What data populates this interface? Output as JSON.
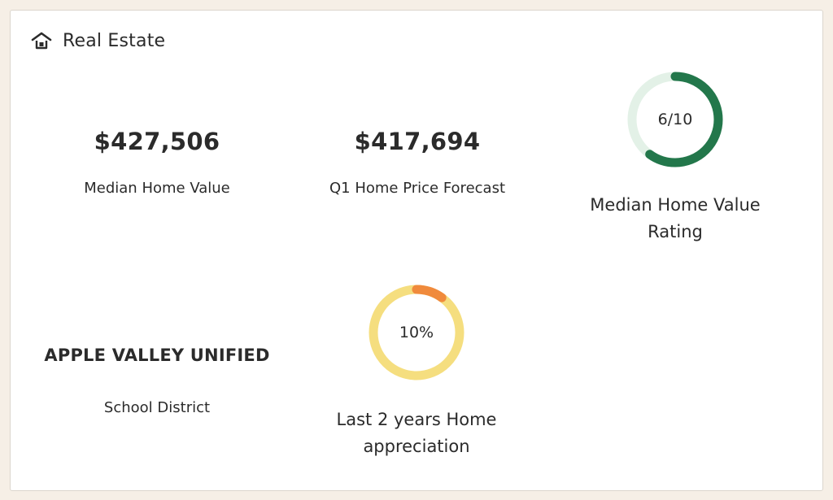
{
  "header": {
    "title": "Real Estate",
    "icon": "house-icon"
  },
  "metrics": [
    {
      "value": "$427,506",
      "label": "Median Home Value"
    },
    {
      "value": "$417,694",
      "label": "Q1 Home Price Forecast"
    }
  ],
  "rating": {
    "text": "6/10",
    "value": 6,
    "max": 10,
    "label_line1": "Median Home Value",
    "label_line2": "Rating",
    "color": "#23774b",
    "track_color": "#e3f1e7"
  },
  "school": {
    "name": "APPLE VALLEY UNIFIED",
    "label": "School District"
  },
  "appreciation": {
    "text": "10%",
    "percent": 10,
    "label_line1": "Last 2 years Home",
    "label_line2": "appreciation",
    "color": "#f08a3c",
    "track_color": "#f5de7f"
  }
}
